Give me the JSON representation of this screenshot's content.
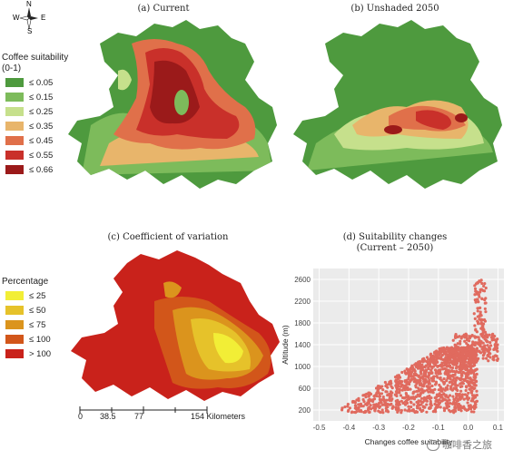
{
  "compass": {
    "n": "N",
    "s": "S",
    "e": "E",
    "w": "W"
  },
  "panels": {
    "a": {
      "title": "(a) Current"
    },
    "b": {
      "title": "(b) Unshaded 2050"
    },
    "c": {
      "title": "(c) Coefficient of variation"
    },
    "d": {
      "title_line1": "(d)  Suitability changes",
      "title_line2": "(Current – 2050)"
    }
  },
  "legend_suitability": {
    "title_line1": "Coffee suitability",
    "title_line2": "(0-1)",
    "items": [
      {
        "label": "≤ 0.05",
        "color": "#4e9a3e"
      },
      {
        "label": "≤ 0.15",
        "color": "#7dbb5b"
      },
      {
        "label": "≤ 0.25",
        "color": "#c6e08c"
      },
      {
        "label": "≤ 0.35",
        "color": "#e8b56b"
      },
      {
        "label": "≤ 0.45",
        "color": "#e0704a"
      },
      {
        "label": "≤ 0.55",
        "color": "#c9302a"
      },
      {
        "label": "≤ 0.66",
        "color": "#9b1a1a"
      }
    ]
  },
  "legend_percentage": {
    "title": "Percentage",
    "items": [
      {
        "label": "≤ 25",
        "color": "#f2ee36"
      },
      {
        "label": "≤ 50",
        "color": "#e6c22a"
      },
      {
        "label": "≤ 75",
        "color": "#db941d"
      },
      {
        "label": "≤ 100",
        "color": "#d2561a"
      },
      {
        "label": "> 100",
        "color": "#c9221b"
      }
    ]
  },
  "scalebar": {
    "ticks": [
      "0",
      "38.5",
      "77",
      "154 Kilometers"
    ]
  },
  "chart_data": {
    "type": "scatter",
    "xlabel": "Changes coffee suitability",
    "ylabel": "Altitude (m)",
    "x_ticks": [
      "-0.5",
      "-0.4",
      "-0.3",
      "-0.2",
      "-0.1",
      "0.0",
      "0.1"
    ],
    "y_ticks": [
      "200",
      "600",
      "1000",
      "1400",
      "1800",
      "2200",
      "2600"
    ],
    "xlim": [
      -0.52,
      0.12
    ],
    "ylim": [
      0,
      2800
    ],
    "point_color": "#e06a5e",
    "background": "#ebebeb",
    "grid": true
  },
  "watermark": "咖啡香之旅"
}
